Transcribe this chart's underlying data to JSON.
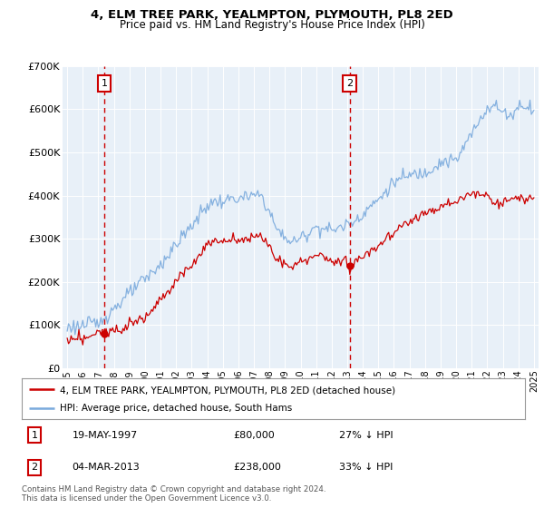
{
  "title": "4, ELM TREE PARK, YEALMPTON, PLYMOUTH, PL8 2ED",
  "subtitle": "Price paid vs. HM Land Registry's House Price Index (HPI)",
  "background_color": "#e8f0f8",
  "red_line_label": "4, ELM TREE PARK, YEALMPTON, PLYMOUTH, PL8 2ED (detached house)",
  "blue_line_label": "HPI: Average price, detached house, South Hams",
  "footer": "Contains HM Land Registry data © Crown copyright and database right 2024.\nThis data is licensed under the Open Government Licence v3.0.",
  "annotation1": {
    "num": "1",
    "date": "19-MAY-1997",
    "price": "£80,000",
    "pct": "27% ↓ HPI"
  },
  "annotation2": {
    "num": "2",
    "date": "04-MAR-2013",
    "price": "£238,000",
    "pct": "33% ↓ HPI"
  },
  "ylim": [
    0,
    700000
  ],
  "yticks": [
    0,
    100000,
    200000,
    300000,
    400000,
    500000,
    600000,
    700000
  ],
  "ytick_labels": [
    "£0",
    "£100K",
    "£200K",
    "£300K",
    "£400K",
    "£500K",
    "£600K",
    "£700K"
  ],
  "sale1_year": 1997.38,
  "sale1_price": 80000,
  "sale2_year": 2013.17,
  "sale2_price": 238000,
  "red_color": "#cc0000",
  "blue_color": "#7aaadd",
  "dashed_color": "#cc0000",
  "grid_color": "#ffffff",
  "xtick_years": [
    1995,
    1996,
    1997,
    1998,
    1999,
    2000,
    2001,
    2002,
    2003,
    2004,
    2005,
    2006,
    2007,
    2008,
    2009,
    2010,
    2011,
    2012,
    2013,
    2014,
    2015,
    2016,
    2017,
    2018,
    2019,
    2020,
    2021,
    2022,
    2023,
    2024,
    2025
  ]
}
